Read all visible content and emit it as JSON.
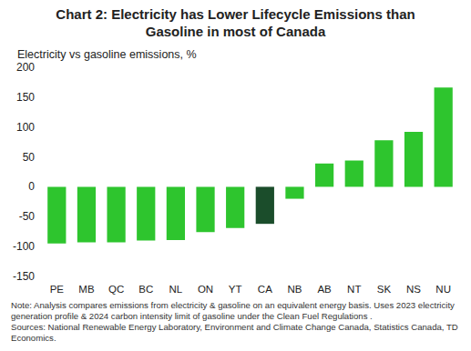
{
  "chart_data": {
    "type": "bar",
    "title": "Chart 2: Electricity has Lower Lifecycle Emissions than Gasoline in most of Canada",
    "y_label": "Electricity vs gasoline emissions, %",
    "categories": [
      "PE",
      "MB",
      "QC",
      "BC",
      "NL",
      "ON",
      "YT",
      "CA",
      "NB",
      "AB",
      "NT",
      "SK",
      "NS",
      "NU"
    ],
    "values": [
      -95,
      -93,
      -93,
      -90,
      -89,
      -76,
      -69,
      -62,
      -20,
      39,
      44,
      78,
      92,
      166
    ],
    "colors": [
      "#2ec52e",
      "#2ec52e",
      "#2ec52e",
      "#2ec52e",
      "#2ec52e",
      "#2ec52e",
      "#2ec52e",
      "#1b4d2b",
      "#2ec52e",
      "#2ec52e",
      "#2ec52e",
      "#2ec52e",
      "#2ec52e",
      "#2ec52e"
    ],
    "ylim": [
      -150,
      200
    ],
    "yticks": [
      -150,
      -100,
      -50,
      0,
      50,
      100,
      150,
      200
    ],
    "grid": false,
    "note": "Note: Analysis compares emissions from electricity & gasoline on an equivalent energy basis. Uses 2023 electricity generation profile & 2024 carbon intensity limit of gasoline under the Clean Fuel Regulations .",
    "sources": "Sources: National Renewable Energy Laboratory, Environment and Climate Change Canada, Statistics Canada, TD Economics."
  }
}
